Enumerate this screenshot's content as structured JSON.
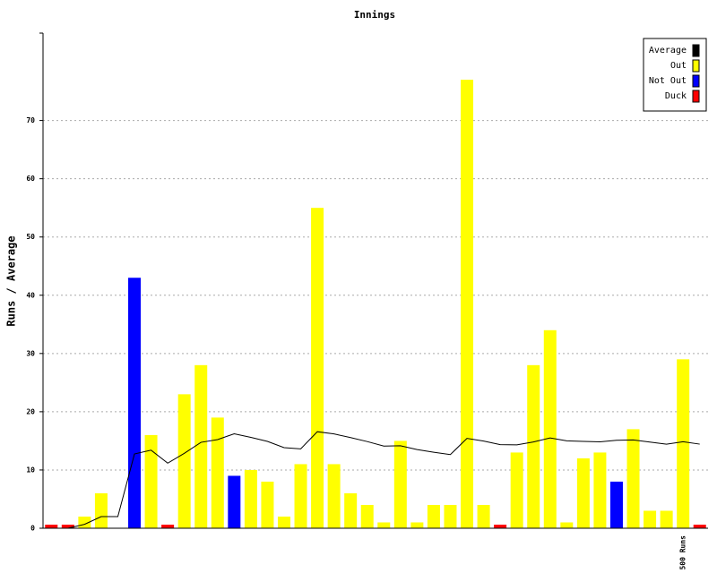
{
  "chart_data": {
    "type": "bar",
    "title": "Innings",
    "y_label": "Runs / Average",
    "categories": [
      null,
      null,
      null,
      null,
      null,
      null,
      null,
      null,
      null,
      null,
      null,
      null,
      null,
      null,
      null,
      null,
      null,
      null,
      null,
      null,
      null,
      null,
      null,
      null,
      null,
      null,
      null,
      null,
      null,
      null,
      null,
      null,
      null,
      null,
      null,
      null,
      null,
      null,
      "500 Runs",
      null
    ],
    "series": [
      {
        "name": "Average",
        "type": "line",
        "color": "#000000",
        "values": [
          0,
          0,
          0.67,
          2,
          2,
          12.75,
          13.4,
          11.17,
          12.86,
          14.75,
          15.22,
          16.22,
          15.6,
          14.91,
          13.83,
          13.62,
          16.57,
          16.2,
          15.56,
          14.88,
          14.11,
          14.16,
          13.5,
          13.05,
          12.64,
          15.43,
          14.96,
          14.36,
          14.31,
          14.81,
          15.5,
          15,
          14.9,
          14.84,
          15.1,
          15.16,
          14.79,
          14.44,
          14.86,
          14.44
        ]
      },
      {
        "name": "Out",
        "type": "bar",
        "color": "#ffff00",
        "values": [
          null,
          null,
          2,
          6,
          null,
          null,
          16,
          null,
          23,
          28,
          19,
          null,
          10,
          8,
          2,
          11,
          55,
          11,
          6,
          4,
          1,
          15,
          1,
          4,
          4,
          77,
          4,
          null,
          13,
          28,
          34,
          1,
          12,
          13,
          null,
          17,
          3,
          3,
          29,
          null
        ]
      },
      {
        "name": "Not Out",
        "type": "bar",
        "color": "#0000ff",
        "values": [
          null,
          null,
          null,
          null,
          0,
          43,
          null,
          null,
          null,
          null,
          null,
          9,
          null,
          null,
          null,
          null,
          null,
          null,
          null,
          null,
          null,
          null,
          null,
          null,
          null,
          null,
          null,
          null,
          null,
          null,
          null,
          null,
          null,
          null,
          8,
          null,
          null,
          null,
          null,
          null
        ]
      },
      {
        "name": "Duck",
        "type": "bar",
        "color": "#ff0000",
        "values": [
          0,
          0,
          null,
          null,
          null,
          null,
          null,
          0,
          null,
          null,
          null,
          null,
          null,
          null,
          null,
          null,
          null,
          null,
          null,
          null,
          null,
          null,
          null,
          null,
          null,
          null,
          null,
          0,
          null,
          null,
          null,
          null,
          null,
          null,
          null,
          null,
          null,
          null,
          null,
          0
        ]
      }
    ],
    "ylim": [
      0,
      85
    ],
    "yticks": [
      0,
      10,
      20,
      30,
      40,
      50,
      60,
      70
    ],
    "grid": true,
    "legend": "top-right"
  }
}
